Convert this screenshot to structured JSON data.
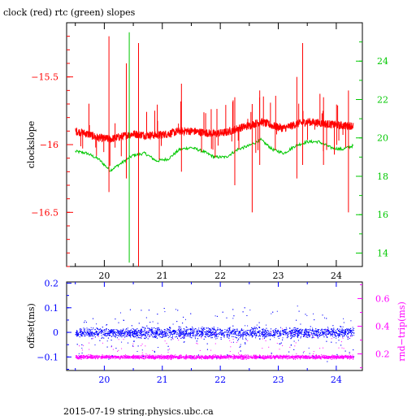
{
  "title": "clock (red) rtc (green) slopes",
  "footer": "2015-07-19  string.physics.ubc.ca",
  "chart_data": [
    {
      "type": "line",
      "title": "clock (red) rtc (green) slopes",
      "ylabel": "clockslope",
      "xlim": [
        19.35,
        24.45
      ],
      "ylim": [
        -16.9,
        -15.1
      ],
      "y2lim": [
        13.3,
        26.0
      ],
      "xticks": [
        20,
        21,
        22,
        23,
        24
      ],
      "yticks": [
        -15.5,
        -16,
        -16.5
      ],
      "ytick_labels": [
        "−15.5",
        "−16",
        "−16.5"
      ],
      "y2ticks": [
        14,
        16,
        18,
        20,
        22,
        24
      ],
      "colors": {
        "clock": "#ff0000",
        "rtc": "#00c800"
      },
      "series": [
        {
          "name": "clock",
          "axis": "left",
          "x": [
            19.5,
            19.7,
            19.9,
            20.1,
            20.3,
            20.5,
            20.7,
            20.9,
            21.1,
            21.3,
            21.5,
            21.7,
            21.9,
            22.1,
            22.3,
            22.5,
            22.7,
            22.9,
            23.1,
            23.3,
            23.5,
            23.7,
            23.9,
            24.1,
            24.3
          ],
          "y": [
            -15.9,
            -15.92,
            -15.95,
            -15.96,
            -15.94,
            -15.92,
            -15.93,
            -15.93,
            -15.92,
            -15.9,
            -15.9,
            -15.91,
            -15.92,
            -15.91,
            -15.88,
            -15.86,
            -15.83,
            -15.86,
            -15.88,
            -15.85,
            -15.83,
            -15.84,
            -15.85,
            -15.86,
            -15.86
          ]
        },
        {
          "name": "rtc",
          "axis": "right",
          "x": [
            19.5,
            19.7,
            19.9,
            20.1,
            20.3,
            20.5,
            20.7,
            20.9,
            21.1,
            21.3,
            21.5,
            21.7,
            21.9,
            22.1,
            22.3,
            22.5,
            22.7,
            22.9,
            23.1,
            23.3,
            23.5,
            23.7,
            23.9,
            24.1,
            24.3
          ],
          "y": [
            19.3,
            19.2,
            18.9,
            18.3,
            18.7,
            19.1,
            19.2,
            18.8,
            18.9,
            19.4,
            19.5,
            19.3,
            19.0,
            19.0,
            19.4,
            19.6,
            19.9,
            19.4,
            19.2,
            19.6,
            19.8,
            19.8,
            19.5,
            19.4,
            19.6
          ]
        }
      ],
      "spikes": [
        {
          "series": "clock",
          "x": 20.08,
          "y1": -16.35,
          "y2": -15.2
        },
        {
          "series": "clock",
          "x": 20.38,
          "y1": -16.25,
          "y2": -15.4
        },
        {
          "series": "clock",
          "x": 20.59,
          "y1": -16.9,
          "y2": -15.25
        },
        {
          "series": "clock",
          "x": 21.33,
          "y1": -16.2,
          "y2": -15.55
        },
        {
          "series": "clock",
          "x": 22.25,
          "y1": -16.3,
          "y2": -15.65
        },
        {
          "series": "clock",
          "x": 22.55,
          "y1": -16.5,
          "y2": -15.7
        },
        {
          "series": "clock",
          "x": 22.68,
          "y1": -16.15,
          "y2": -15.6
        },
        {
          "series": "clock",
          "x": 23.32,
          "y1": -16.25,
          "y2": -15.5
        },
        {
          "series": "clock",
          "x": 23.42,
          "y1": -16.15,
          "y2": -15.25
        },
        {
          "series": "clock",
          "x": 23.78,
          "y1": -16.15,
          "y2": -15.65
        },
        {
          "series": "clock",
          "x": 24.21,
          "y1": -16.5,
          "y2": -15.6
        },
        {
          "series": "rtc",
          "x": 20.43,
          "y1": 13.5,
          "y2": 25.5
        }
      ]
    },
    {
      "type": "scatter",
      "xlim": [
        19.35,
        24.45
      ],
      "ylim": [
        -0.155,
        0.205
      ],
      "y2lim": [
        0.08,
        0.72
      ],
      "xticks": [
        20,
        21,
        22,
        23,
        24
      ],
      "yticks": [
        0.2,
        0.1,
        0,
        -0.1
      ],
      "ytick_labels": [
        "0.2",
        "0.1",
        "0",
        "−0.1"
      ],
      "y2ticks": [
        0.2,
        0.4,
        0.6
      ],
      "ylabel": "offset(ms)",
      "y2label": "rnd−trip(ms)",
      "colors": {
        "offset": "#0000ff",
        "rnd-trip": "#ff00ff"
      },
      "series": [
        {
          "name": "offset",
          "axis": "left",
          "x_range": [
            19.5,
            24.3
          ],
          "center": 0.0,
          "spread": 0.03
        },
        {
          "name": "rnd-trip",
          "axis": "right",
          "x_range": [
            19.5,
            24.3
          ],
          "center": 0.18,
          "spread": 0.02
        }
      ]
    }
  ]
}
